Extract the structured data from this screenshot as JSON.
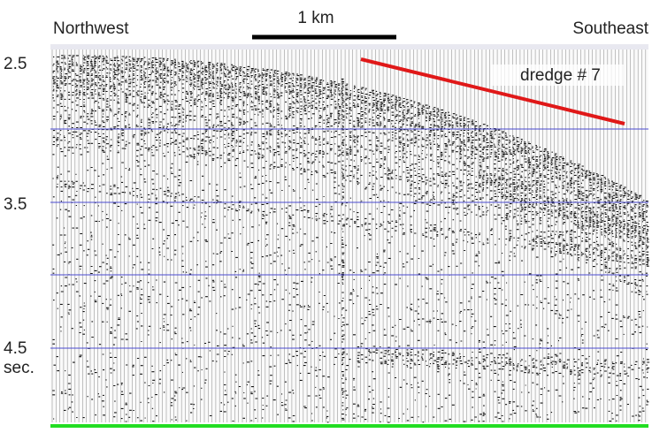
{
  "header": {
    "left": "Northwest",
    "scale": "1 km",
    "right": "Southeast"
  },
  "annotation": "dredge # 7",
  "axis": {
    "labels": [
      "2.5",
      "3.5",
      "4.5"
    ],
    "unit": "sec."
  }
}
